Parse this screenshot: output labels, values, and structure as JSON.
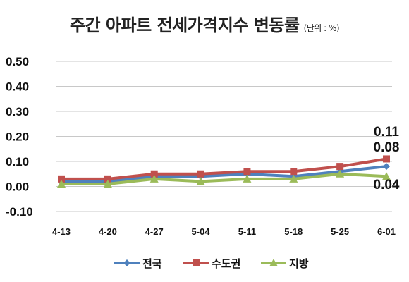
{
  "chart_data": {
    "type": "line",
    "title": "주간 아파트 전세가격지수 변동률",
    "title_unit": "(단위 : %)",
    "categories": [
      "4-13",
      "4-20",
      "4-27",
      "5-04",
      "5-11",
      "5-18",
      "5-25",
      "6-01"
    ],
    "ylim": [
      -0.1,
      0.5
    ],
    "yticks": [
      "0.50",
      "0.40",
      "0.30",
      "0.20",
      "0.10",
      "0.00",
      "-0.10"
    ],
    "grid": true,
    "legend_position": "bottom",
    "series": [
      {
        "name": "전국",
        "color": "#4f81bd",
        "marker": "diamond",
        "values": [
          0.02,
          0.02,
          0.04,
          0.04,
          0.05,
          0.04,
          0.06,
          0.08
        ]
      },
      {
        "name": "수도권",
        "color": "#c0504d",
        "marker": "square",
        "values": [
          0.03,
          0.03,
          0.05,
          0.05,
          0.06,
          0.06,
          0.08,
          0.11
        ]
      },
      {
        "name": "지방",
        "color": "#9bbb59",
        "marker": "triangle",
        "values": [
          0.01,
          0.01,
          0.03,
          0.02,
          0.03,
          0.03,
          0.05,
          0.04
        ]
      }
    ],
    "annotations": [
      "0.11",
      "0.08",
      "0.04"
    ]
  }
}
